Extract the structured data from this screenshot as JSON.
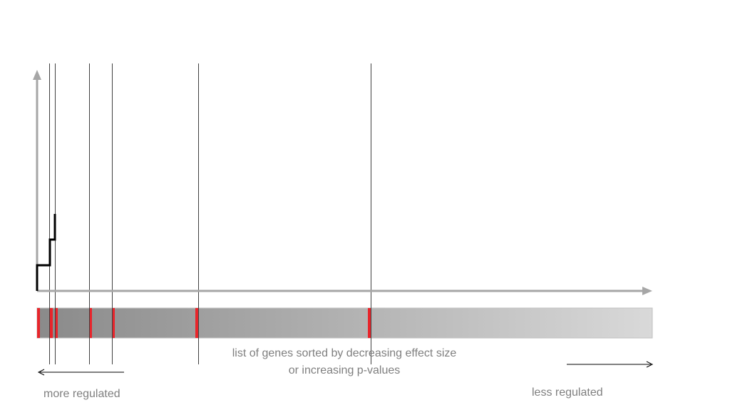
{
  "texts": {
    "caption_line1": "list of genes sorted by decreasing effect size",
    "caption_line2": "or increasing p-values",
    "left_label": "more regulated",
    "right_label": "less regulated"
  },
  "colors": {
    "axis": "#a6a6a6",
    "hit_marker": "#e8252b",
    "step_curve": "#000000",
    "guide_line": "#404040",
    "bar_start": "#8a8a8a",
    "bar_end": "#d9d9d9",
    "caption": "#7f7f7f"
  }
}
